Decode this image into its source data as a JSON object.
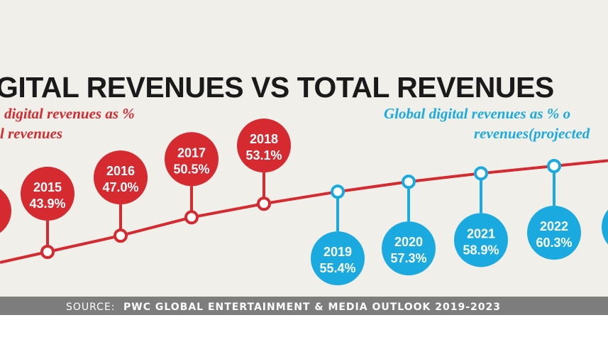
{
  "chart_data": {
    "type": "line",
    "title": "GITAL REVENUES VS TOTAL REVENUES",
    "series": [
      {
        "name_lines": [
          "digital revenues as %",
          "l revenues"
        ],
        "color": "#d42a30",
        "points": [
          {
            "year": "2015",
            "value": 43.9,
            "label": "43.9%"
          },
          {
            "year": "2016",
            "value": 47.0,
            "label": "47.0%"
          },
          {
            "year": "2017",
            "value": 50.5,
            "label": "50.5%"
          },
          {
            "year": "2018",
            "value": 53.1,
            "label": "53.1%"
          }
        ]
      },
      {
        "name_lines": [
          "Global digital revenues as % o",
          "revenues(projected"
        ],
        "color": "#1aaae0",
        "points": [
          {
            "year": "2019",
            "value": 55.4,
            "label": "55.4%"
          },
          {
            "year": "2020",
            "value": 57.3,
            "label": "57.3%"
          },
          {
            "year": "2021",
            "value": 58.9,
            "label": "58.9%"
          },
          {
            "year": "2022",
            "value": 60.3,
            "label": "60.3%"
          }
        ]
      }
    ],
    "source": "SOURCE:",
    "source_detail": "PWC GLOBAL ENTERTAINMENT & MEDIA OUTLOOK 2019-2023"
  },
  "colors": {
    "panel": "#f1efe9",
    "line": "#d42a30",
    "red": "#d42a30",
    "blue": "#1aaae0",
    "source_bar": "#7d7d7d"
  }
}
